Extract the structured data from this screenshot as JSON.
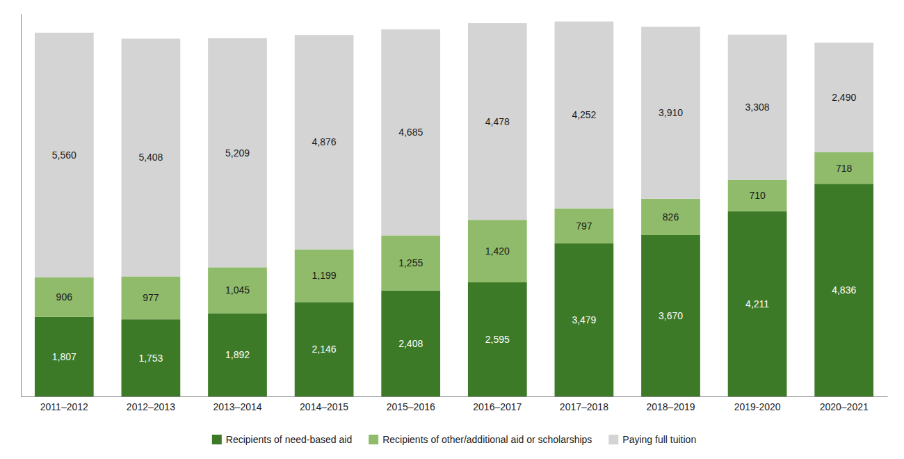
{
  "chart_data": {
    "type": "bar",
    "stacked": true,
    "data_labels": true,
    "grid": false,
    "legend": "bottom",
    "tick_labels": "x",
    "categories": [
      "2011–2012",
      "2012–2013",
      "2013–2014",
      "2014–2015",
      "2015–2016",
      "2016–2017",
      "2017–2018",
      "2018–2019",
      "2019-2020",
      "2020–2021"
    ],
    "ylim": [
      0,
      8700
    ],
    "series": [
      {
        "name": "Recipients of need-based aid",
        "color": "#3d7a28",
        "values": [
          1807,
          1753,
          1892,
          2146,
          2408,
          2595,
          3479,
          3670,
          4211,
          4836
        ],
        "value_labels": [
          "1,807",
          "1,753",
          "1,892",
          "2,146",
          "2,408",
          "2,595",
          "3,479",
          "3,670",
          "4,211",
          "4,836"
        ]
      },
      {
        "name": "Recipients of other/additional aid or scholarships",
        "color": "#8fbb6a",
        "values": [
          906,
          977,
          1045,
          1199,
          1255,
          1420,
          797,
          826,
          710,
          718
        ],
        "value_labels": [
          "906",
          "977",
          "1,045",
          "1,199",
          "1,255",
          "1,420",
          "797",
          "826",
          "710",
          "718"
        ]
      },
      {
        "name": "Paying full tuition",
        "color": "#d4d4d4",
        "values": [
          5560,
          5408,
          5209,
          4876,
          4685,
          4478,
          4252,
          3910,
          3308,
          2490
        ],
        "value_labels": [
          "5,560",
          "5,408",
          "5,209",
          "4,876",
          "4,685",
          "4,478",
          "4,252",
          "3,910",
          "3,308",
          "2,490"
        ]
      }
    ]
  }
}
